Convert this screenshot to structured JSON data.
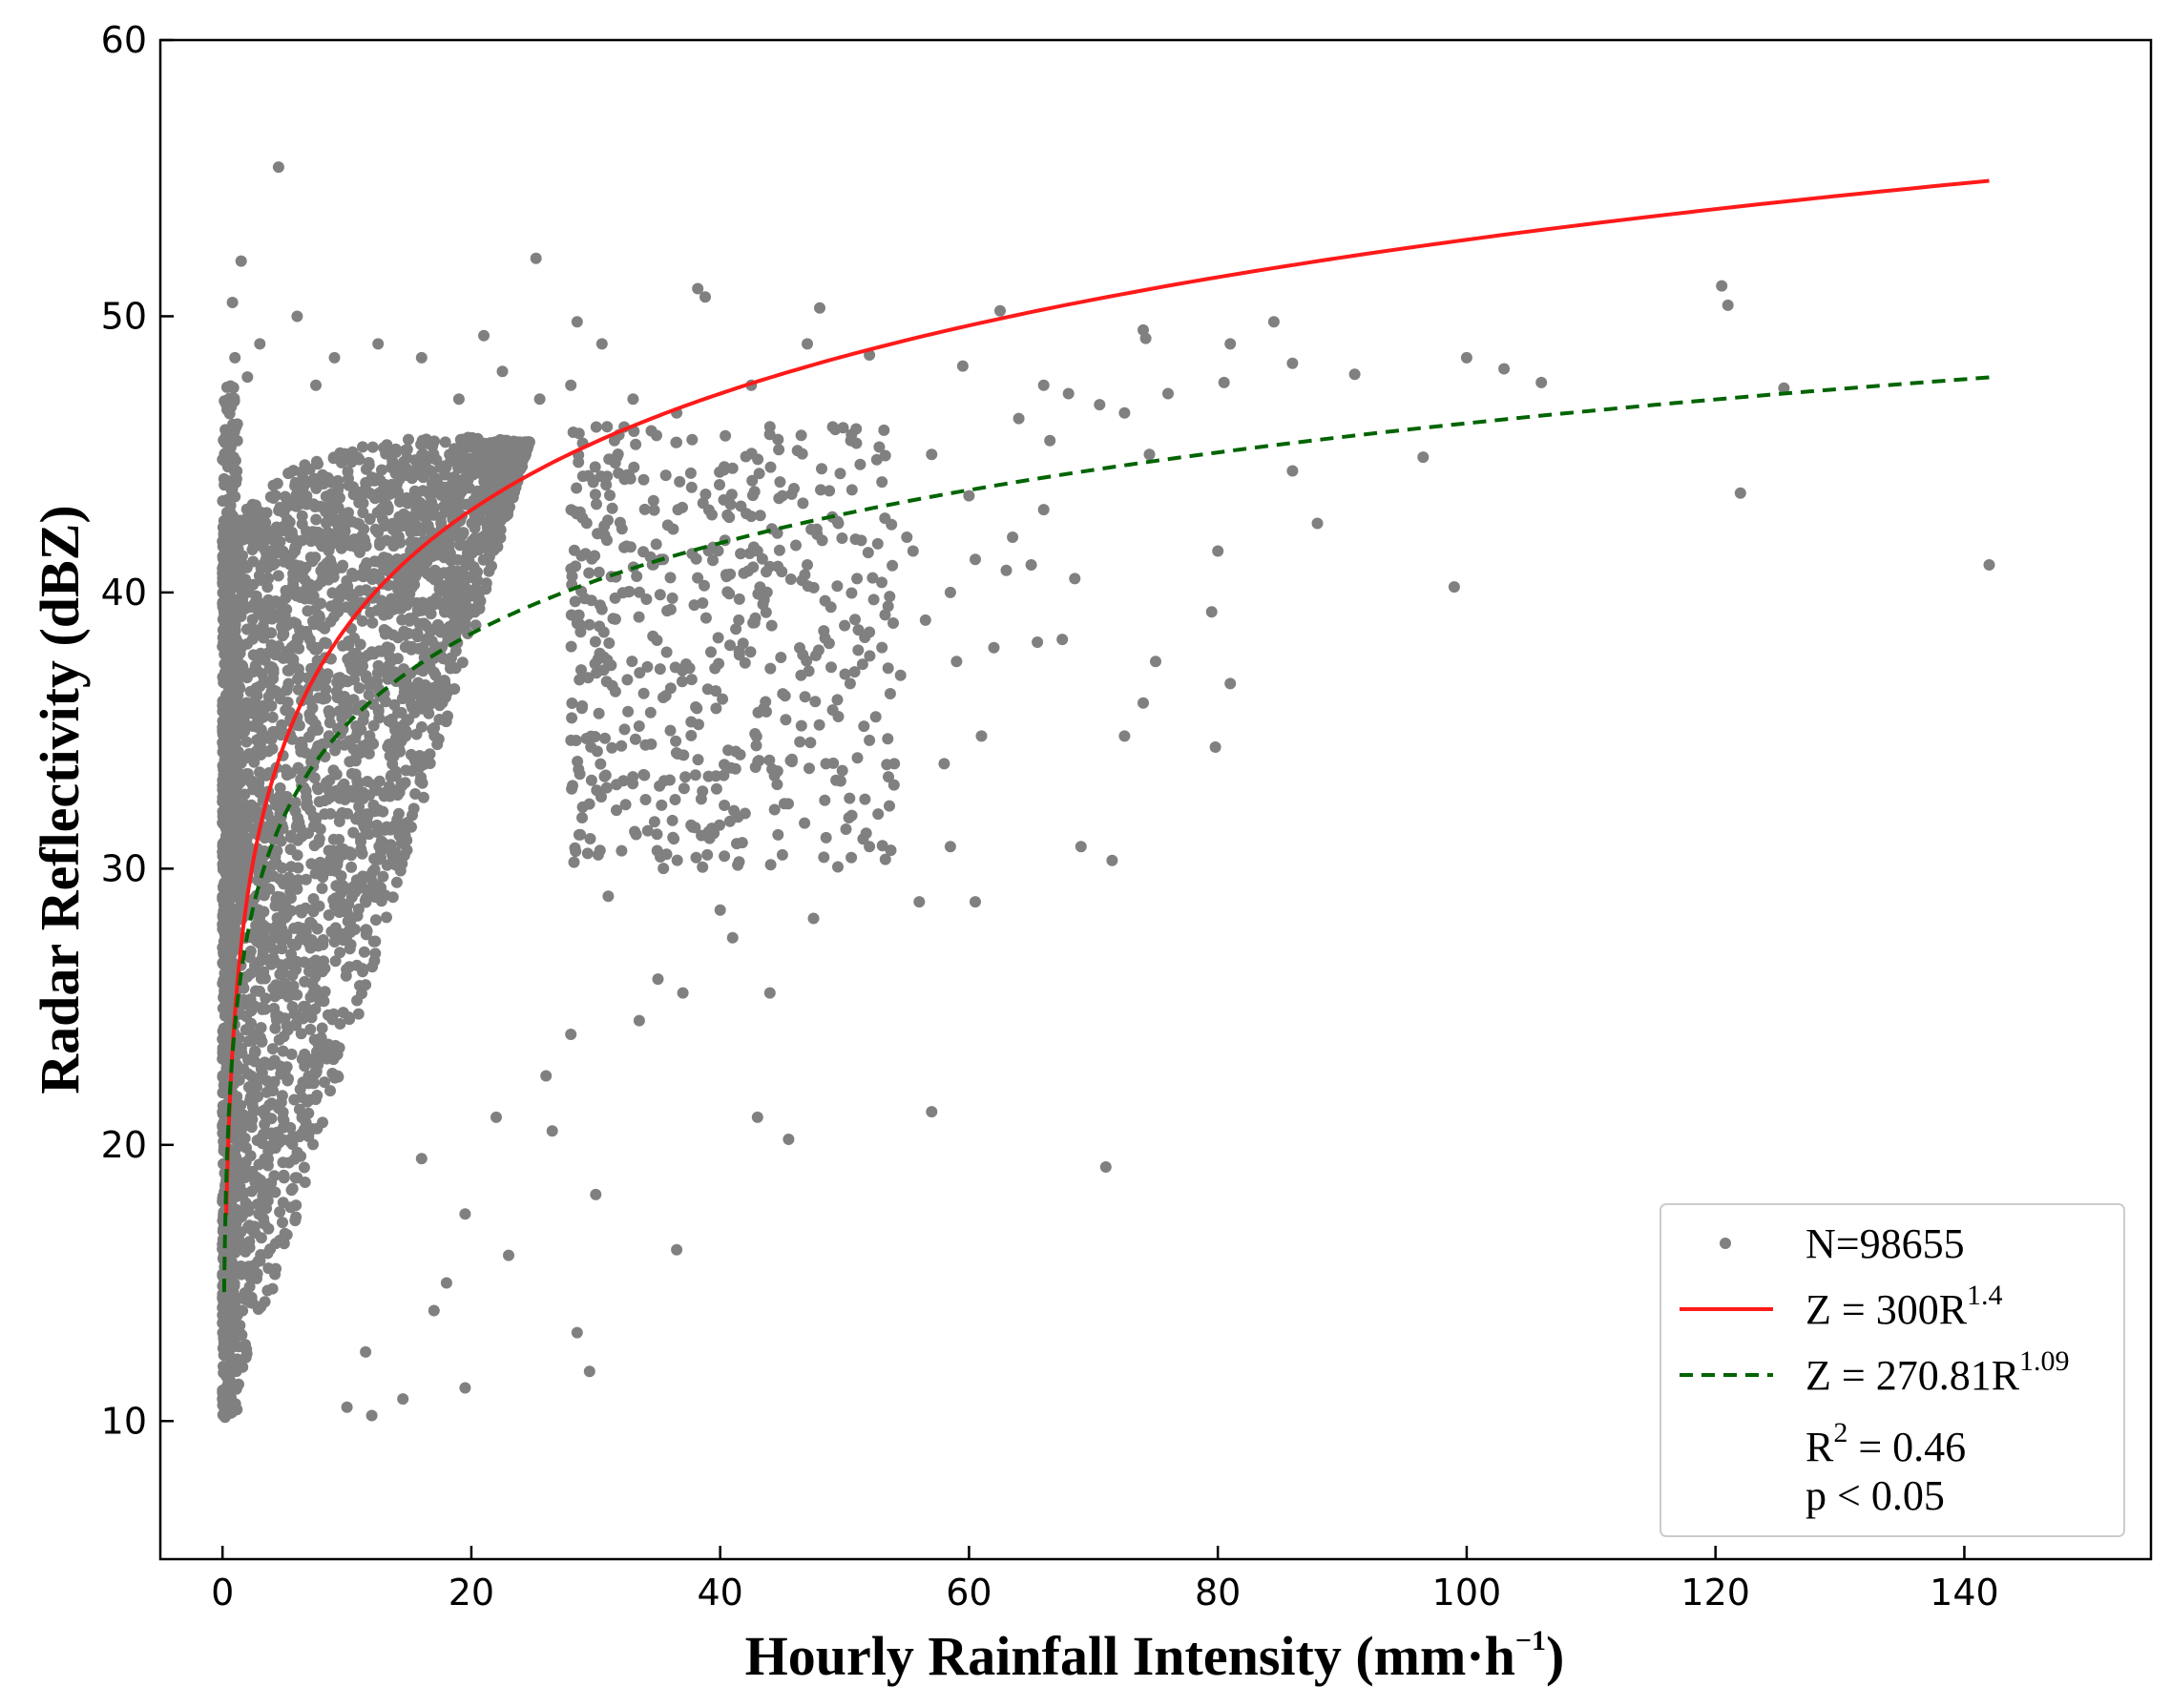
{
  "chart_data": {
    "type": "scatter",
    "xlabel": "Hourly Rainfall Intensity (mm·h",
    "xlabel_sup": "−1",
    "xlabel_end": ")",
    "ylabel": "Radar Reflectivity (dBZ)",
    "xlim": [
      -5,
      155
    ],
    "ylim": [
      5,
      60
    ],
    "xticks": [
      0,
      20,
      40,
      60,
      80,
      100,
      120,
      140
    ],
    "yticks": [
      10,
      20,
      30,
      40,
      50,
      60
    ],
    "scatter": {
      "name": "N=98655",
      "color": "#808080",
      "outliers": [
        [
          4.5,
          55.4
        ],
        [
          1.5,
          52.0
        ],
        [
          25.2,
          52.1
        ],
        [
          0.8,
          50.5
        ],
        [
          6.0,
          50.0
        ],
        [
          38.2,
          51.0
        ],
        [
          38.8,
          50.7
        ],
        [
          48.0,
          50.3
        ],
        [
          62.5,
          50.2
        ],
        [
          28.5,
          49.8
        ],
        [
          21.0,
          49.3
        ],
        [
          30.5,
          49.0
        ],
        [
          47.0,
          49.0
        ],
        [
          52.0,
          48.6
        ],
        [
          59.5,
          48.2
        ],
        [
          66.0,
          47.5
        ],
        [
          68.0,
          47.2
        ],
        [
          70.5,
          46.8
        ],
        [
          72.5,
          46.5
        ],
        [
          74.0,
          49.5
        ],
        [
          74.2,
          49.2
        ],
        [
          76.0,
          47.2
        ],
        [
          81.0,
          49.0
        ],
        [
          84.5,
          49.8
        ],
        [
          86.0,
          48.3
        ],
        [
          80.5,
          47.6
        ],
        [
          91.0,
          47.9
        ],
        [
          100.0,
          48.5
        ],
        [
          103.0,
          48.1
        ],
        [
          106.0,
          47.6
        ],
        [
          120.5,
          51.1
        ],
        [
          121.0,
          50.4
        ],
        [
          125.5,
          47.4
        ],
        [
          64.0,
          46.3
        ],
        [
          66.5,
          45.5
        ],
        [
          74.5,
          45.0
        ],
        [
          86.0,
          44.4
        ],
        [
          96.5,
          44.9
        ],
        [
          122.0,
          43.6
        ],
        [
          142.0,
          41.0
        ],
        [
          99.0,
          40.2
        ],
        [
          88.0,
          42.5
        ],
        [
          80.0,
          41.5
        ],
        [
          79.5,
          39.3
        ],
        [
          81.0,
          36.7
        ],
        [
          79.8,
          34.4
        ],
        [
          75.0,
          37.5
        ],
        [
          74.0,
          36.0
        ],
        [
          72.5,
          34.8
        ],
        [
          69.0,
          30.8
        ],
        [
          71.5,
          30.3
        ],
        [
          71.0,
          19.2
        ],
        [
          65.5,
          38.2
        ],
        [
          67.5,
          38.3
        ],
        [
          63.0,
          40.8
        ],
        [
          60.5,
          41.2
        ],
        [
          61.0,
          34.8
        ],
        [
          58.0,
          33.8
        ],
        [
          58.5,
          30.8
        ],
        [
          60.5,
          28.8
        ],
        [
          56.0,
          28.8
        ],
        [
          57.0,
          21.2
        ],
        [
          43.0,
          21.0
        ],
        [
          45.5,
          20.2
        ],
        [
          36.5,
          16.2
        ],
        [
          28.5,
          13.2
        ],
        [
          29.5,
          11.8
        ],
        [
          19.5,
          11.2
        ],
        [
          30.0,
          18.2
        ],
        [
          47.5,
          28.2
        ],
        [
          52.0,
          30.8
        ],
        [
          48.5,
          33.8
        ],
        [
          54.0,
          33.8
        ],
        [
          44.0,
          25.5
        ],
        [
          45.0,
          30.5
        ],
        [
          40.0,
          28.5
        ],
        [
          41.0,
          27.5
        ],
        [
          55.0,
          42.0
        ],
        [
          53.0,
          44.0
        ],
        [
          44.0,
          46.0
        ],
        [
          42.5,
          47.5
        ],
        [
          50.5,
          45.5
        ],
        [
          57.0,
          45.0
        ],
        [
          60.0,
          43.5
        ],
        [
          65.0,
          41.0
        ],
        [
          68.5,
          40.5
        ],
        [
          66.0,
          43.0
        ],
        [
          62.0,
          38.0
        ],
        [
          56.5,
          39.0
        ],
        [
          59.0,
          37.5
        ],
        [
          54.5,
          37.0
        ],
        [
          52.5,
          35.5
        ],
        [
          50.0,
          38.8
        ],
        [
          46.5,
          37.0
        ],
        [
          42.0,
          32.0
        ],
        [
          43.5,
          35.8
        ],
        [
          38.5,
          31.2
        ],
        [
          35.0,
          26.0
        ],
        [
          37.0,
          25.5
        ],
        [
          33.5,
          24.5
        ],
        [
          26.0,
          22.5
        ],
        [
          22.0,
          21.0
        ],
        [
          19.5,
          17.5
        ],
        [
          23.0,
          16.0
        ],
        [
          17.0,
          14.0
        ],
        [
          14.5,
          10.8
        ],
        [
          12.0,
          10.2
        ],
        [
          10.0,
          10.5
        ],
        [
          11.5,
          12.5
        ],
        [
          16.0,
          19.5
        ],
        [
          18.0,
          15.0
        ],
        [
          26.5,
          20.5
        ],
        [
          28.0,
          24.0
        ],
        [
          31.0,
          29.0
        ],
        [
          34.0,
          32.5
        ],
        [
          36.0,
          35.0
        ],
        [
          39.0,
          36.5
        ],
        [
          41.5,
          39.0
        ],
        [
          43.0,
          41.5
        ],
        [
          45.0,
          43.5
        ],
        [
          47.0,
          41.0
        ],
        [
          49.5,
          42.5
        ],
        [
          51.0,
          40.5
        ],
        [
          53.5,
          39.5
        ],
        [
          55.5,
          41.5
        ],
        [
          58.5,
          40.0
        ],
        [
          63.5,
          42.0
        ],
        [
          41.0,
          44.5
        ],
        [
          36.5,
          46.5
        ],
        [
          33.0,
          47.0
        ],
        [
          31.5,
          45.5
        ],
        [
          28.0,
          47.5
        ],
        [
          25.5,
          47.0
        ],
        [
          22.5,
          48.0
        ],
        [
          19.0,
          47.0
        ],
        [
          16.0,
          48.5
        ],
        [
          12.5,
          49.0
        ],
        [
          9.0,
          48.5
        ],
        [
          7.5,
          47.5
        ],
        [
          3.0,
          49.0
        ],
        [
          1.0,
          48.5
        ],
        [
          2.0,
          47.8
        ]
      ]
    },
    "series": [
      {
        "name": "Z = 300R",
        "sup": "1.4",
        "a": 300,
        "b": 1.4,
        "color": "#ff1a1a",
        "dash": "solid",
        "x_range": [
          0.3,
          142
        ]
      },
      {
        "name": "Z = 270.81R",
        "sup": "1.09",
        "a": 270.81,
        "b": 1.09,
        "color": "#006400",
        "dash": "dashed",
        "x_range": [
          0.13,
          142
        ]
      }
    ],
    "stats": {
      "r2_label": "R",
      "r2_sup": "2",
      "r2_value": " = 0.46",
      "p": "p < 0.05"
    },
    "legend_position": "lower-right"
  }
}
